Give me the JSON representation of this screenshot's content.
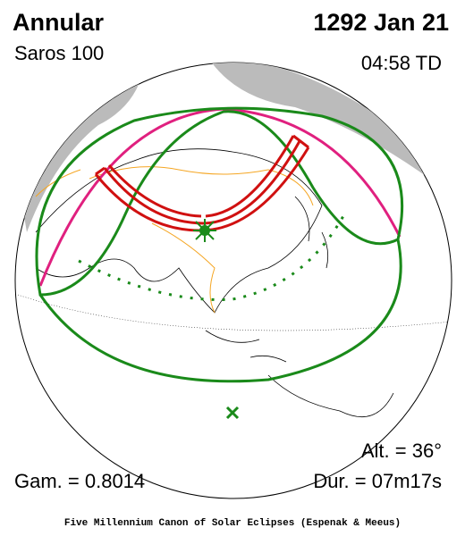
{
  "header": {
    "eclipse_type": "Annular",
    "saros": "Saros 100",
    "date": "1292 Jan 21",
    "time": "04:58 TD"
  },
  "stats": {
    "altitude": "Alt. = 36°",
    "gamma": "Gam. = 0.8014",
    "duration": "Dur. = 07m17s"
  },
  "footer": "Five Millennium Canon of Solar Eclipses (Espenak & Meeus)"
}
